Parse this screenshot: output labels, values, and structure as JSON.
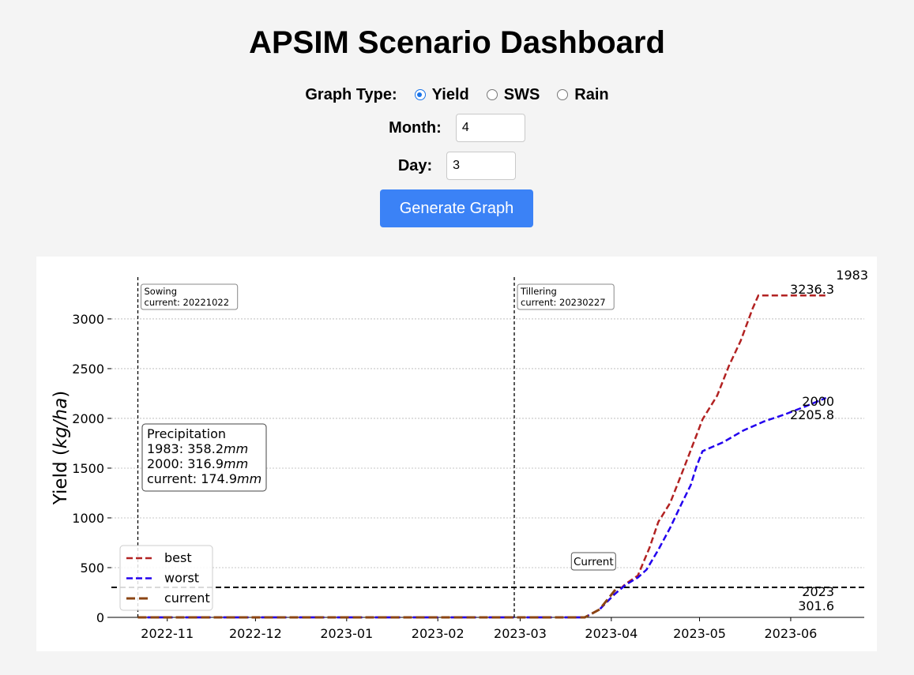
{
  "header": {
    "title": "APSIM Scenario Dashboard"
  },
  "controls": {
    "graph_type_label": "Graph Type:",
    "graph_types": [
      {
        "label": "Yield",
        "checked": true
      },
      {
        "label": "SWS",
        "checked": false
      },
      {
        "label": "Rain",
        "checked": false
      }
    ],
    "month_label": "Month:",
    "month_value": "4",
    "day_label": "Day:",
    "day_value": "3",
    "generate_label": "Generate Graph"
  },
  "colors": {
    "accent": "#3b82f6",
    "best": "#b22222",
    "worst": "#2200ee",
    "current": "#8b4513"
  },
  "chart_data": {
    "type": "line",
    "ylabel": "Yield (kg/ha)",
    "ylim": [
      0,
      3420
    ],
    "yticks": [
      0,
      500,
      1000,
      1500,
      2000,
      2500,
      3000
    ],
    "xlim": [
      "2022-10-13",
      "2023-06-26"
    ],
    "xticks": [
      "2022-11",
      "2022-12",
      "2023-01",
      "2023-02",
      "2023-03",
      "2023-04",
      "2023-05",
      "2023-06"
    ],
    "grid": "horizontal dotted",
    "legend_position": "lower-left",
    "series": [
      {
        "name": "best",
        "color_key": "best",
        "points": [
          [
            "2022-10-22",
            0
          ],
          [
            "2023-03-23",
            0
          ],
          [
            "2023-03-28",
            80
          ],
          [
            "2023-04-02",
            230
          ],
          [
            "2023-04-06",
            340
          ],
          [
            "2023-04-10",
            420
          ],
          [
            "2023-04-14",
            700
          ],
          [
            "2023-04-17",
            960
          ],
          [
            "2023-04-21",
            1150
          ],
          [
            "2023-04-25",
            1450
          ],
          [
            "2023-04-28",
            1680
          ],
          [
            "2023-05-02",
            1990
          ],
          [
            "2023-05-07",
            2230
          ],
          [
            "2023-05-11",
            2530
          ],
          [
            "2023-05-15",
            2780
          ],
          [
            "2023-05-19",
            3100
          ],
          [
            "2023-05-21",
            3236.3
          ],
          [
            "2023-06-13",
            3236.3
          ]
        ]
      },
      {
        "name": "worst",
        "color_key": "worst",
        "points": [
          [
            "2022-10-22",
            0
          ],
          [
            "2023-03-23",
            0
          ],
          [
            "2023-03-28",
            80
          ],
          [
            "2023-04-02",
            230
          ],
          [
            "2023-04-06",
            330
          ],
          [
            "2023-04-10",
            400
          ],
          [
            "2023-04-13",
            480
          ],
          [
            "2023-04-17",
            680
          ],
          [
            "2023-04-21",
            900
          ],
          [
            "2023-04-25",
            1150
          ],
          [
            "2023-04-28",
            1330
          ],
          [
            "2023-04-30",
            1520
          ],
          [
            "2023-05-02",
            1670
          ],
          [
            "2023-05-09",
            1760
          ],
          [
            "2023-05-16",
            1880
          ],
          [
            "2023-05-23",
            1970
          ],
          [
            "2023-05-30",
            2040
          ],
          [
            "2023-06-06",
            2120
          ],
          [
            "2023-06-13",
            2205.8
          ]
        ]
      },
      {
        "name": "current",
        "color_key": "current",
        "points": [
          [
            "2022-10-22",
            0
          ],
          [
            "2023-03-23",
            0
          ],
          [
            "2023-03-28",
            80
          ],
          [
            "2023-04-03",
            301.6
          ]
        ]
      }
    ],
    "reference_line": {
      "y": 301.6,
      "style": "dashed black"
    },
    "vertical_markers": [
      {
        "date": "2022-10-22",
        "label": "Sowing",
        "detail": "current: 20221022"
      },
      {
        "date": "2023-02-27",
        "label": "Tillering",
        "detail": "current: 20230227"
      }
    ],
    "end_labels": [
      {
        "year": "1983",
        "value": "3236.3"
      },
      {
        "year": "2000",
        "value": "2205.8"
      },
      {
        "year": "2023",
        "value": "301.6"
      }
    ],
    "current_marker": {
      "label": "Current",
      "date": "2023-04-03",
      "value": 301.6
    },
    "precipitation": {
      "title": "Precipitation",
      "rows": [
        {
          "name": "1983",
          "value": "358.2",
          "unit": "mm"
        },
        {
          "name": "2000",
          "value": "316.9",
          "unit": "mm"
        },
        {
          "name": "current",
          "value": "174.9",
          "unit": "mm"
        }
      ]
    }
  }
}
